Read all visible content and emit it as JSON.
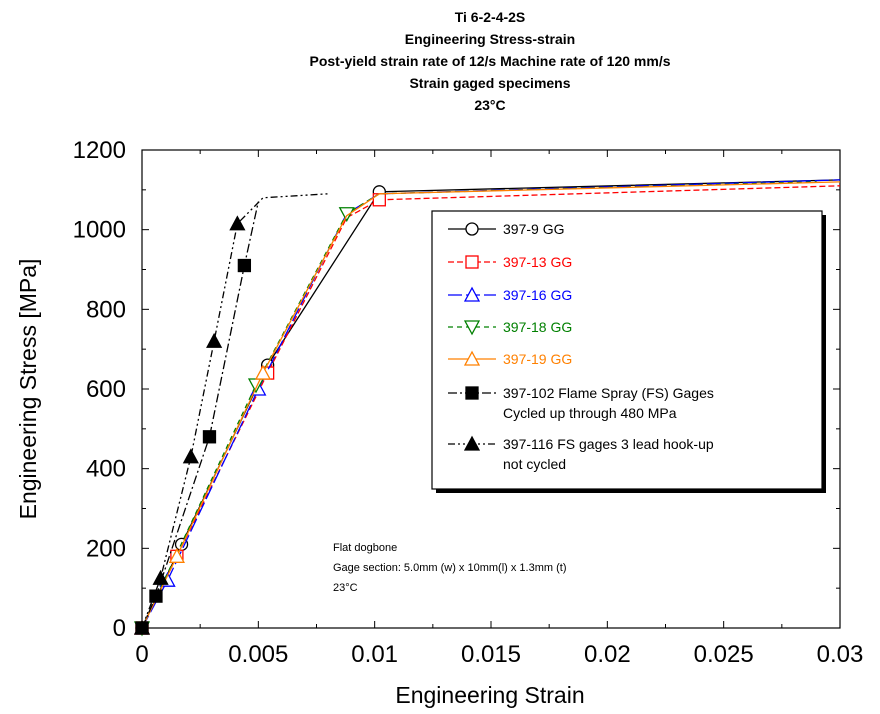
{
  "chart_data": {
    "type": "scatter",
    "title_lines": [
      "Ti 6-2-4-2S",
      "Engineering Stress-strain",
      "Post-yield strain rate of 12/s  Machine rate of 120 mm/s",
      "Strain gaged specimens",
      "23°C"
    ],
    "xlabel": "Engineering Strain",
    "ylabel": "Engineering Stress [MPa]",
    "xlim": [
      0,
      0.03
    ],
    "ylim": [
      0,
      1200
    ],
    "x_ticks": [
      0,
      0.005,
      0.01,
      0.015,
      0.02,
      0.025,
      0.03
    ],
    "x_tick_labels": [
      "0",
      "0.005",
      "0.01",
      "0.015",
      "0.02",
      "0.025",
      "0.03"
    ],
    "y_ticks": [
      0,
      200,
      400,
      600,
      800,
      1000,
      1200
    ],
    "y_tick_labels": [
      "0",
      "200",
      "400",
      "600",
      "800",
      "1000",
      "1200"
    ],
    "grid": false,
    "legend_position": "right",
    "annotation": [
      "Flat dogbone",
      "Gage section: 5.0mm (w) x 10mm(l) x 1.3mm (t)",
      "23°C"
    ],
    "series": [
      {
        "name": "397-9 GG",
        "legend_lines": [
          "397-9 GG"
        ],
        "color": "#000000",
        "marker": "circle",
        "filled": false,
        "dash": "",
        "points": [
          [
            0,
            0
          ],
          [
            0.0017,
            210
          ],
          [
            0.0054,
            660
          ],
          [
            0.0102,
            1095
          ],
          [
            0.03,
            1125
          ]
        ],
        "markers": [
          [
            0,
            0
          ],
          [
            0.0017,
            210
          ],
          [
            0.0054,
            660
          ],
          [
            0.0102,
            1095
          ]
        ]
      },
      {
        "name": "397-13 GG",
        "legend_lines": [
          "397-13 GG"
        ],
        "color": "#ff0000",
        "marker": "square",
        "filled": false,
        "dash": "6,3",
        "points": [
          [
            0,
            0
          ],
          [
            0.0015,
            180
          ],
          [
            0.0054,
            640
          ],
          [
            0.0088,
            1030
          ],
          [
            0.0102,
            1075
          ],
          [
            0.03,
            1110
          ]
        ],
        "markers": [
          [
            0,
            0
          ],
          [
            0.0015,
            180
          ],
          [
            0.0054,
            640
          ],
          [
            0.0102,
            1075
          ]
        ]
      },
      {
        "name": "397-16 GG",
        "legend_lines": [
          "397-16 GG"
        ],
        "color": "#0000ff",
        "marker": "triangle-up",
        "filled": false,
        "dash": "14,4",
        "points": [
          [
            0,
            0
          ],
          [
            0.0011,
            120
          ],
          [
            0.005,
            600
          ],
          [
            0.0088,
            1040
          ],
          [
            0.0102,
            1090
          ],
          [
            0.03,
            1125
          ]
        ],
        "markers": [
          [
            0,
            0
          ],
          [
            0.0011,
            120
          ],
          [
            0.005,
            600
          ]
        ]
      },
      {
        "name": "397-18 GG",
        "legend_lines": [
          "397-18 GG"
        ],
        "color": "#008000",
        "marker": "triangle-down",
        "filled": false,
        "dash": "5,4",
        "points": [
          [
            0,
            0
          ],
          [
            0.0012,
            150
          ],
          [
            0.0049,
            610
          ],
          [
            0.0088,
            1040
          ],
          [
            0.0102,
            1090
          ],
          [
            0.029,
            1120
          ]
        ],
        "markers": [
          [
            0,
            0
          ],
          [
            0.0049,
            610
          ],
          [
            0.0088,
            1040
          ]
        ]
      },
      {
        "name": "397-19 GG",
        "legend_lines": [
          "397-19 GG"
        ],
        "color": "#ff8000",
        "marker": "triangle-up",
        "filled": false,
        "dash": "",
        "points": [
          [
            0,
            0
          ],
          [
            0.0015,
            180
          ],
          [
            0.0052,
            640
          ],
          [
            0.0088,
            1035
          ],
          [
            0.0102,
            1090
          ],
          [
            0.03,
            1120
          ]
        ],
        "markers": [
          [
            0,
            0
          ],
          [
            0.0015,
            180
          ],
          [
            0.0052,
            640
          ]
        ]
      },
      {
        "name": "397-102 Flame Spray (FS) Gages Cycled up through 480 MPa",
        "legend_lines": [
          "397-102 Flame Spray (FS) Gages",
          "Cycled up through 480 MPa"
        ],
        "color": "#000000",
        "marker": "square",
        "filled": true,
        "dash": "9,3,2,3",
        "points": [
          [
            0,
            0
          ],
          [
            0.0006,
            80
          ],
          [
            0.0029,
            480
          ],
          [
            0.0044,
            910
          ],
          [
            0.005,
            1070
          ]
        ],
        "markers": [
          [
            0,
            0
          ],
          [
            0.0006,
            80
          ],
          [
            0.0029,
            480
          ],
          [
            0.0044,
            910
          ]
        ]
      },
      {
        "name": "397-116 FS gages  3 lead hook-up not cycled",
        "legend_lines": [
          "397-116 FS gages  3 lead hook-up",
          "not cycled"
        ],
        "color": "#000000",
        "marker": "triangle-up",
        "filled": true,
        "dash": "7,3,2,3,2,3",
        "points": [
          [
            0,
            0
          ],
          [
            0.0008,
            125
          ],
          [
            0.0021,
            430
          ],
          [
            0.0031,
            720
          ],
          [
            0.0041,
            1015
          ],
          [
            0.0052,
            1080
          ],
          [
            0.008,
            1090
          ]
        ],
        "markers": [
          [
            0,
            0
          ],
          [
            0.0008,
            125
          ],
          [
            0.0021,
            430
          ],
          [
            0.0031,
            720
          ],
          [
            0.0041,
            1015
          ]
        ]
      }
    ]
  }
}
